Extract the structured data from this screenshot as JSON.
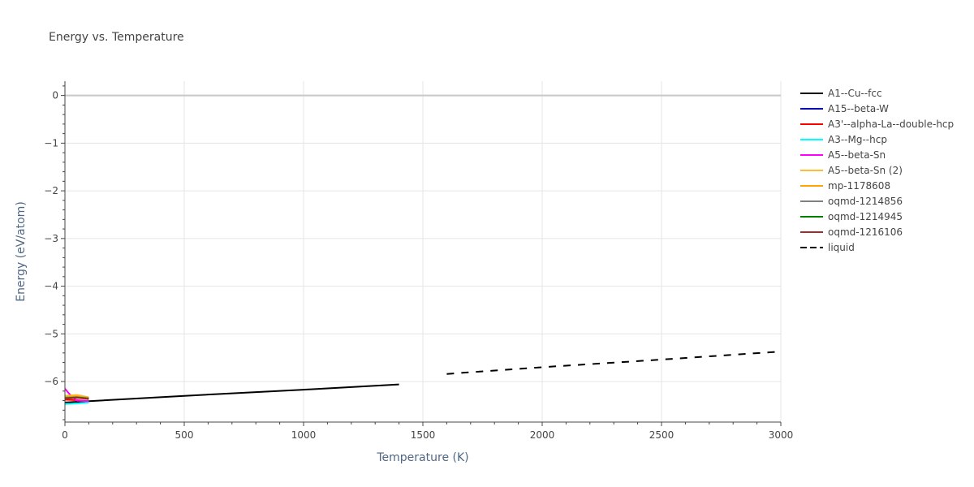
{
  "chart_data": {
    "type": "line",
    "title": "Energy vs. Temperature",
    "xlabel": "Temperature (K)",
    "ylabel": "Energy (eV/atom)",
    "xlim": [
      0,
      3000
    ],
    "ylim": [
      -6.85,
      0.3
    ],
    "xticks": [
      0,
      500,
      1000,
      1500,
      2000,
      2500,
      3000
    ],
    "xtick_labels": [
      "0",
      "500",
      "1000",
      "1500",
      "2000",
      "2500",
      "3000"
    ],
    "yticks": [
      0,
      -1,
      -2,
      -3,
      -4,
      -5,
      -6
    ],
    "ytick_labels": [
      "0",
      "−1",
      "−2",
      "−3",
      "−4",
      "−5",
      "−6"
    ],
    "grid": true,
    "legend_position": "right",
    "series": [
      {
        "name": "A1--Cu--fcc",
        "color": "#000000",
        "dash": "solid",
        "x": [
          0,
          500,
          1000,
          1400
        ],
        "y": [
          -6.44,
          -6.3,
          -6.17,
          -6.06
        ]
      },
      {
        "name": "A15--beta-W",
        "color": "#0000ff",
        "dash": "solid",
        "x": [
          0,
          50,
          100
        ],
        "y": [
          -6.3,
          -6.3,
          -6.36
        ]
      },
      {
        "name": "A3'--alpha-La--double-hcp",
        "color": "#ff0000",
        "dash": "solid",
        "x": [
          0,
          50,
          100
        ],
        "y": [
          -6.38,
          -6.39,
          -6.41
        ]
      },
      {
        "name": "A3--Mg--hcp",
        "color": "#00ffff",
        "dash": "solid",
        "x": [
          0,
          50,
          100
        ],
        "y": [
          -6.47,
          -6.46,
          -6.44
        ]
      },
      {
        "name": "A5--beta-Sn",
        "color": "#ff00ff",
        "dash": "solid",
        "x": [
          0,
          20,
          50,
          100
        ],
        "y": [
          -6.15,
          -6.27,
          -6.4,
          -6.41
        ]
      },
      {
        "name": "A5--beta-Sn (2)",
        "color": "#ffbb33",
        "dash": "solid",
        "x": [
          0,
          50,
          100
        ],
        "y": [
          -6.3,
          -6.28,
          -6.33
        ]
      },
      {
        "name": "mp-1178608",
        "color": "#ffa500",
        "dash": "solid",
        "x": [
          0,
          50,
          100
        ],
        "y": [
          -6.32,
          -6.31,
          -6.34
        ]
      },
      {
        "name": "oqmd-1214856",
        "color": "#808080",
        "dash": "solid",
        "x": [
          0,
          50,
          100
        ],
        "y": [
          -6.34,
          -6.33,
          -6.35
        ]
      },
      {
        "name": "oqmd-1214945",
        "color": "#008000",
        "dash": "solid",
        "x": [
          0,
          50,
          100
        ],
        "y": [
          -6.35,
          -6.33,
          -6.36
        ]
      },
      {
        "name": "oqmd-1216106",
        "color": "#a52a2a",
        "dash": "solid",
        "x": [
          0,
          50,
          100
        ],
        "y": [
          -6.36,
          -6.34,
          -6.37
        ]
      },
      {
        "name": "liquid",
        "color": "#000000",
        "dash": "dash",
        "x": [
          1600,
          2000,
          2500,
          3000
        ],
        "y": [
          -5.84,
          -5.7,
          -5.54,
          -5.37
        ]
      }
    ]
  }
}
